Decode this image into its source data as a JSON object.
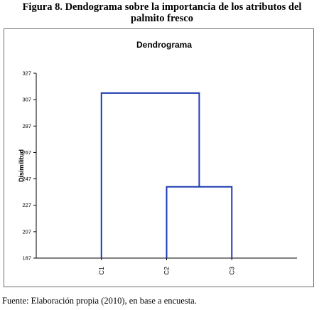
{
  "figure": {
    "title_line1": "Figura 8.  Dendograma sobre la importancia de los atributos del",
    "title_line2": "palmito fresco",
    "source": "Fuente: Elaboración propia (2010), en base a encuesta."
  },
  "chart_data": {
    "type": "dendrogram",
    "title": "Dendrograma",
    "ylabel": "Disimilitud",
    "xlabel": "",
    "ylim": [
      187,
      327
    ],
    "yticks": [
      "327",
      "307",
      "287",
      "267",
      "247",
      "227",
      "207",
      "187"
    ],
    "leaves": [
      "C1",
      "C2",
      "C3"
    ],
    "merges": [
      {
        "left": "C2",
        "right": "C3",
        "height": 241
      },
      {
        "left": "C1",
        "right": "C2+C3",
        "height": 312
      }
    ],
    "line_color": "#1f3bb0",
    "grid": false
  }
}
